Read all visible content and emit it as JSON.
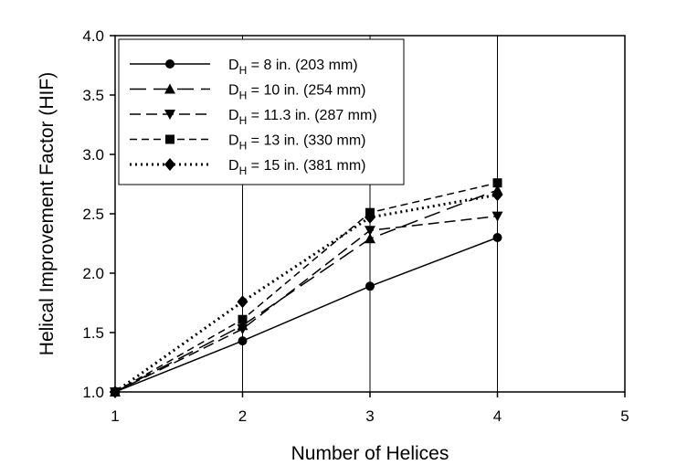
{
  "chart_data": {
    "type": "line",
    "xlabel": "Number of Helices",
    "ylabel": "Helical Improvement Factor (HIF)",
    "xlim": [
      1,
      5
    ],
    "ylim": [
      1.0,
      4.0
    ],
    "xticks": [
      "1",
      "2",
      "3",
      "4",
      "5"
    ],
    "yticks": [
      "1.0",
      "1.5",
      "2.0",
      "2.5",
      "3.0",
      "3.5",
      "4.0"
    ],
    "grid": "vertical",
    "legend_position": "top-left",
    "series": [
      {
        "name_main": "D",
        "name_sub": "H",
        "name_rest": " = 8 in. (203 mm)",
        "marker": "circle",
        "dash": "solid",
        "x": [
          1,
          2,
          3,
          4
        ],
        "values": [
          1.0,
          1.43,
          1.89,
          2.3
        ]
      },
      {
        "name_main": "D",
        "name_sub": "H",
        "name_rest": " = 10 in. (254 mm)",
        "marker": "triangle-up",
        "dash": "long-dash",
        "x": [
          1,
          2,
          3,
          4
        ],
        "values": [
          1.0,
          1.56,
          2.29,
          2.7
        ]
      },
      {
        "name_main": "D",
        "name_sub": "H",
        "name_rest": " = 11.3 in. (287 mm)",
        "marker": "triangle-down",
        "dash": "medium-dash",
        "x": [
          1,
          2,
          3,
          4
        ],
        "values": [
          1.0,
          1.53,
          2.36,
          2.48
        ]
      },
      {
        "name_main": "D",
        "name_sub": "H",
        "name_rest": " = 13 in. (330 mm)",
        "marker": "square",
        "dash": "short-dash",
        "x": [
          1,
          2,
          3,
          4
        ],
        "values": [
          1.0,
          1.61,
          2.51,
          2.76
        ]
      },
      {
        "name_main": "D",
        "name_sub": "H",
        "name_rest": " = 15 in. (381 mm)",
        "marker": "diamond",
        "dash": "dotted",
        "x": [
          1,
          2,
          3,
          4
        ],
        "values": [
          1.0,
          1.76,
          2.47,
          2.66
        ]
      }
    ]
  }
}
